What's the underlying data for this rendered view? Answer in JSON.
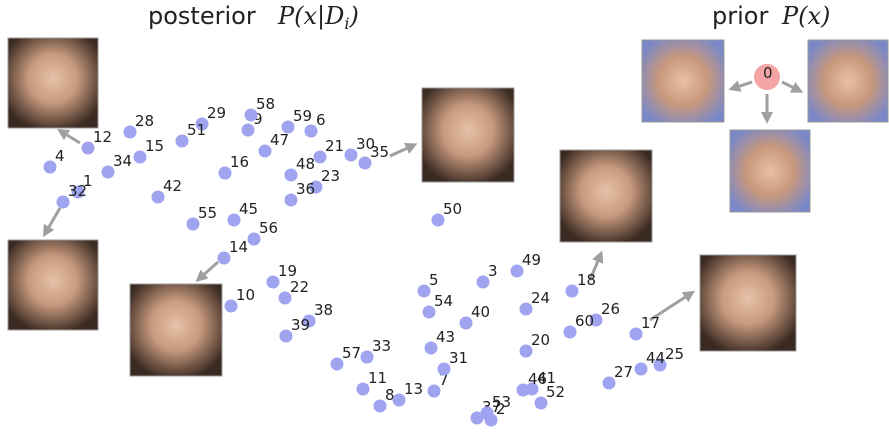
{
  "chart_data": {
    "type": "scatter",
    "posterior_title": {
      "word": "posterior",
      "math": "P(x|D",
      "sub": "i",
      "close": ")"
    },
    "prior_title": {
      "word": "prior",
      "math": "P(x)"
    },
    "xlim": [
      0,
      889
    ],
    "ylim": [
      430,
      0
    ],
    "color": "#a0a4f0",
    "labels": [
      "1",
      "2",
      "3",
      "4",
      "5",
      "6",
      "7",
      "8",
      "9",
      "10",
      "11",
      "12",
      "13",
      "14",
      "15",
      "16",
      "17",
      "18",
      "19",
      "20",
      "21",
      "22",
      "23",
      "24",
      "25",
      "26",
      "27",
      "28",
      "29",
      "30",
      "31",
      "32",
      "33",
      "34",
      "35",
      "36",
      "37",
      "38",
      "39",
      "40",
      "41",
      "42",
      "43",
      "44",
      "45",
      "46",
      "47",
      "48",
      "49",
      "50",
      "51",
      "52",
      "53",
      "54",
      "55",
      "56",
      "57",
      "58",
      "59",
      "60"
    ],
    "x": [
      78,
      491,
      483,
      50,
      424,
      311,
      434,
      380,
      248,
      231,
      363,
      88,
      399,
      224,
      140,
      225,
      636,
      572,
      273,
      526,
      320,
      285,
      316,
      526,
      660,
      596,
      609,
      130,
      202,
      351,
      444,
      63,
      367,
      108,
      365,
      291,
      477,
      309,
      286,
      466,
      532,
      158,
      431,
      641,
      234,
      523,
      265,
      291,
      517,
      438,
      182,
      541,
      487,
      429,
      193,
      254,
      337,
      251,
      288,
      570
    ],
    "values": [
      192,
      420,
      282,
      167,
      291,
      131,
      391,
      406,
      130,
      306,
      389,
      148,
      400,
      258,
      157,
      173,
      334,
      291,
      282,
      351,
      157,
      298,
      187,
      309,
      365,
      320,
      383,
      132,
      124,
      155,
      369,
      202,
      357,
      172,
      163,
      200,
      418,
      321,
      336,
      323,
      389,
      197,
      348,
      369,
      220,
      390,
      151,
      175,
      271,
      220,
      141,
      403,
      413,
      312,
      224,
      239,
      364,
      115,
      127,
      332
    ],
    "prior_point": {
      "label": "0",
      "x": 767,
      "y": 77,
      "color": "#f4a4a4"
    }
  }
}
